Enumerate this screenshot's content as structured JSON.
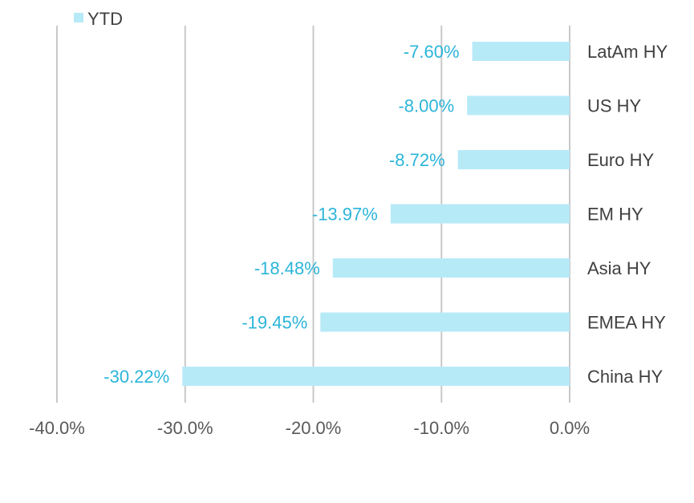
{
  "chart_data": {
    "type": "bar",
    "orientation": "horizontal",
    "categories": [
      "LatAm HY",
      "US HY",
      "Euro HY",
      "EM HY",
      "Asia HY",
      "EMEA HY",
      "China HY"
    ],
    "series": [
      {
        "name": "YTD",
        "values": [
          -7.6,
          -8.0,
          -8.72,
          -13.97,
          -18.48,
          -19.45,
          -30.22
        ],
        "data_labels": [
          "-7.60%",
          "-8.00%",
          "-8.72%",
          "-13.97%",
          "-18.48%",
          "-19.45%",
          "-30.22%"
        ]
      }
    ],
    "x_ticks": [
      -40,
      -30,
      -20,
      -10,
      0
    ],
    "x_tick_labels": [
      "-40.0%",
      "-30.0%",
      "-20.0%",
      "-10.0%",
      "0.0%"
    ],
    "xlim": [
      -40,
      0
    ],
    "grid": "vertical",
    "legend_position": "top-left",
    "colors": {
      "bar": "#B7EAF7",
      "data_label": "#2BB5D9",
      "grid": "#C8C8C8"
    }
  }
}
